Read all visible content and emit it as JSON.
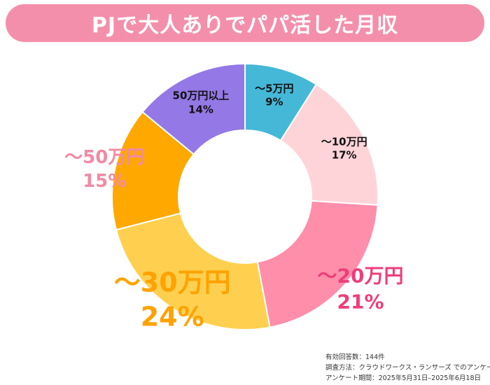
{
  "chart_data": {
    "type": "pie",
    "variant": "donut",
    "title": "PJで大人ありでパパ活した月収",
    "categories": [
      "～5万円",
      "～10万円",
      "～20万円",
      "～30万円",
      "～50万円",
      "50万円以上"
    ],
    "values": [
      9,
      17,
      21,
      24,
      15,
      14
    ],
    "percent_labels": [
      "9%",
      "17%",
      "21%",
      "24%",
      "15%",
      "14%"
    ],
    "slice_colors": [
      "#45b8d8",
      "#ffd4d8",
      "#ff8eab",
      "#ffd050",
      "#ffa800",
      "#9478e6"
    ],
    "label_colors": [
      "#111111",
      "#111111",
      "#ef3d78",
      "#ffa200",
      "#f28aa5",
      "#111111"
    ]
  },
  "notes": {
    "respondents": "有効回答数：144件",
    "method": "調査方法：クラウドワークス・ランサーズ でのアンケート",
    "period": "アンケート期間：2025年5月31日–2025年6月18日"
  }
}
